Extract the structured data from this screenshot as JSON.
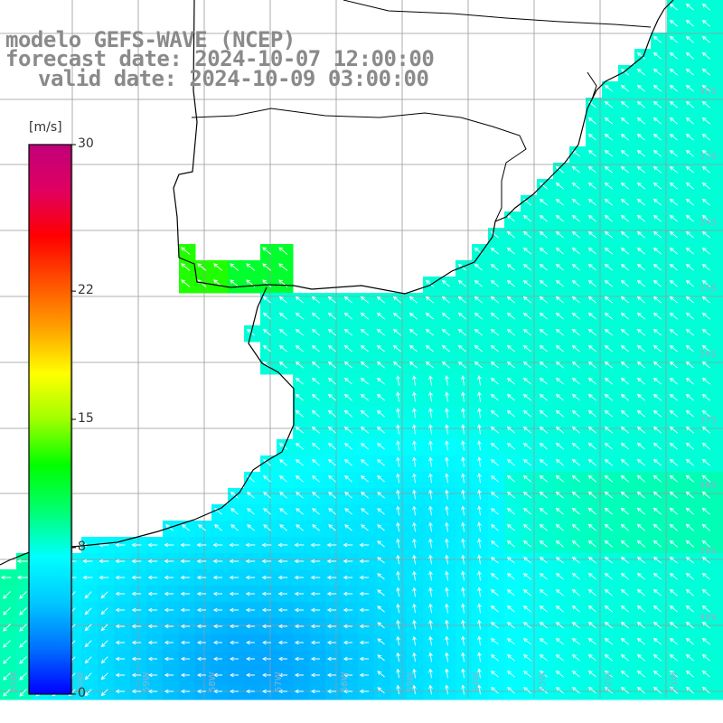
{
  "title": {
    "line1": "modelo GEFS-WAVE (NCEP)",
    "line2": "forecast date: 2024-10-07 12:00:00",
    "line3": "valid date: 2024-10-09 03:00:00"
  },
  "colorbar": {
    "unit": "[m/s]",
    "ticks": [
      {
        "label": "30",
        "value": 30
      },
      {
        "label": "22",
        "value": 22
      },
      {
        "label": "15",
        "value": 15
      },
      {
        "label": "8",
        "value": 8
      },
      {
        "label": "0",
        "value": 0
      }
    ],
    "colors": [
      "#0000ff",
      "#0070ff",
      "#00c8ff",
      "#00ffff",
      "#00ff70",
      "#00ff00",
      "#a0ff00",
      "#ffff00",
      "#ffa000",
      "#ff5000",
      "#ff0000",
      "#e00060",
      "#c0007a"
    ]
  },
  "lat_labels": [
    "32S",
    "33S",
    "34S",
    "35S",
    "36S",
    "37S",
    "38S",
    "39S",
    "40S"
  ],
  "lon_labels": [
    "61W",
    "60W",
    "59W",
    "58W",
    "57W",
    "56W",
    "55W",
    "54W",
    "53W",
    "52W",
    "51W"
  ],
  "chart_data": {
    "type": "heatmap",
    "variable": "wind speed",
    "unit": "m/s",
    "color_range": [
      0,
      30
    ],
    "field_summary": {
      "open_ocean": 8,
      "southwest_coast": 4,
      "rio_de_la_plata": 12
    },
    "predominant_direction": "SE to NW"
  },
  "colors": {
    "grid": "#999999",
    "coast": "#000000",
    "arrow": "#ffffff",
    "title": "#8a8a8a"
  }
}
